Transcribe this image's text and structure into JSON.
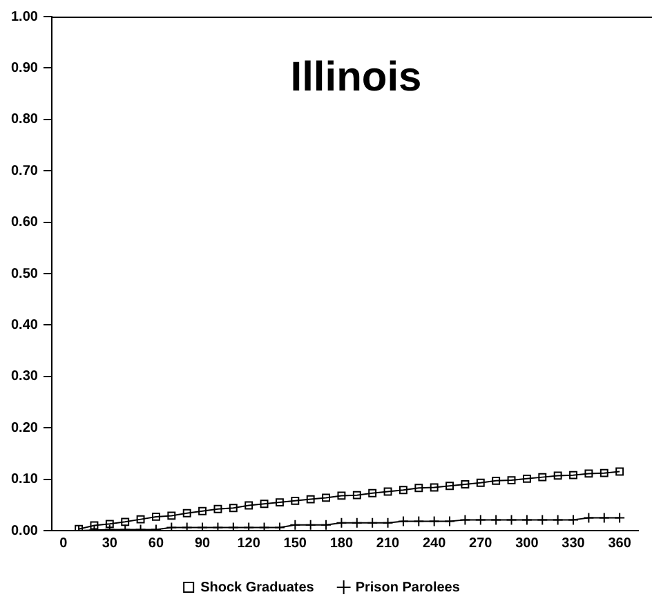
{
  "chart_data": {
    "type": "line",
    "title": "Illinois",
    "x": [
      10,
      20,
      30,
      40,
      50,
      60,
      70,
      80,
      90,
      100,
      110,
      120,
      130,
      140,
      150,
      160,
      170,
      180,
      190,
      200,
      210,
      220,
      230,
      240,
      250,
      260,
      270,
      280,
      290,
      300,
      310,
      320,
      330,
      340,
      350,
      360
    ],
    "series": [
      {
        "name": "Shock Graduates",
        "color": "#000000",
        "marker": "square",
        "values": [
          0.003,
          0.01,
          0.013,
          0.017,
          0.022,
          0.027,
          0.029,
          0.034,
          0.038,
          0.042,
          0.044,
          0.049,
          0.052,
          0.055,
          0.058,
          0.061,
          0.064,
          0.068,
          0.069,
          0.073,
          0.076,
          0.079,
          0.083,
          0.084,
          0.087,
          0.09,
          0.093,
          0.097,
          0.098,
          0.101,
          0.104,
          0.107,
          0.108,
          0.111,
          0.112,
          0.115
        ]
      },
      {
        "name": "Prison Parolees",
        "color": "#000000",
        "marker": "cross",
        "values": [
          0.0,
          0.001,
          0.002,
          0.002,
          0.002,
          0.002,
          0.006,
          0.006,
          0.006,
          0.006,
          0.006,
          0.006,
          0.006,
          0.006,
          0.011,
          0.011,
          0.011,
          0.015,
          0.015,
          0.015,
          0.015,
          0.018,
          0.018,
          0.018,
          0.018,
          0.021,
          0.021,
          0.021,
          0.021,
          0.021,
          0.021,
          0.021,
          0.021,
          0.025,
          0.025,
          0.025
        ]
      }
    ],
    "xlim": [
      -7.5,
      372
    ],
    "xticks": [
      0,
      30,
      60,
      90,
      120,
      150,
      180,
      210,
      240,
      270,
      300,
      330,
      360
    ],
    "ylim": [
      0,
      1
    ],
    "yticks": [
      {
        "value": 0,
        "label": "0.00"
      },
      {
        "value": 0.1,
        "label": "0.10"
      },
      {
        "value": 0.2,
        "label": "0.20"
      },
      {
        "value": 0.3,
        "label": "0.30"
      },
      {
        "value": 0.4,
        "label": "0.40"
      },
      {
        "value": 0.5,
        "label": "0.50"
      },
      {
        "value": 0.6,
        "label": "0.60"
      },
      {
        "value": 0.7,
        "label": "0.70"
      },
      {
        "value": 0.8,
        "label": "0.80"
      },
      {
        "value": 0.9,
        "label": "0.90"
      },
      {
        "value": 1,
        "label": "1.00"
      }
    ],
    "grid": false,
    "legend": "bottom",
    "line_style": "solid"
  }
}
